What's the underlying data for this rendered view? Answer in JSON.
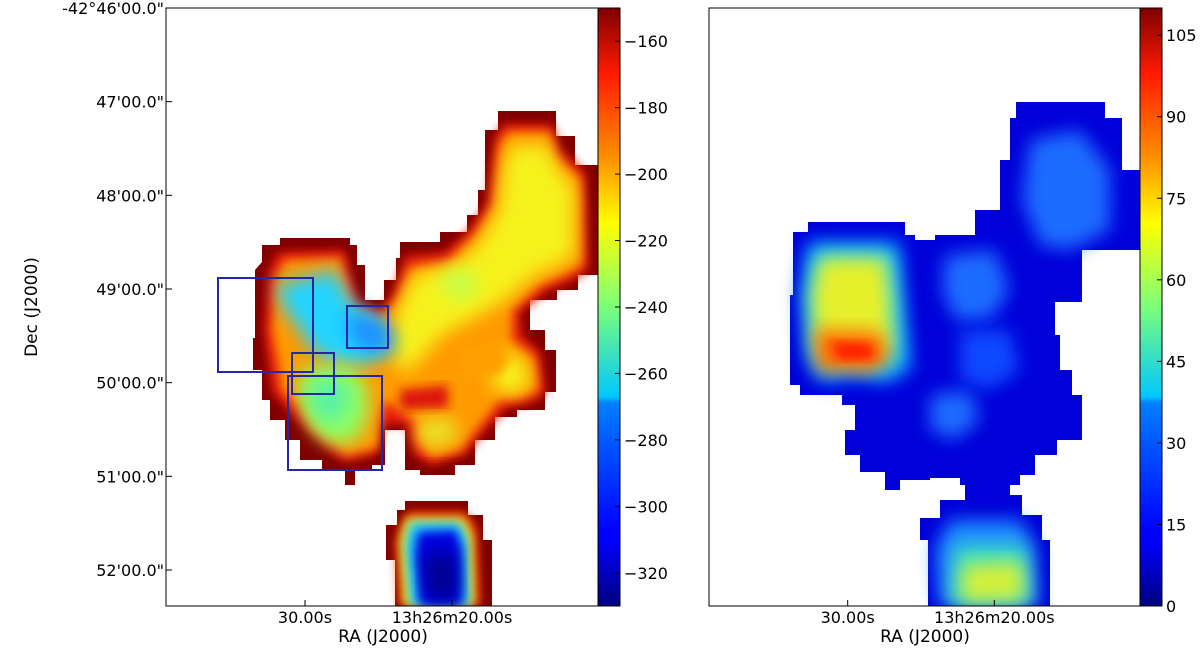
{
  "chart_data": [
    {
      "type": "heatmap",
      "panel": "left",
      "ylabel": "Dec (J2000)",
      "xlabel": "RA (J2000)",
      "x_ticks": [
        {
          "label": "30.00s",
          "ra_sec": 30.0
        },
        {
          "label": "13h26m20.00s",
          "ra_sec": 20.0
        }
      ],
      "y_ticks": [
        {
          "label": "-42°46'00.0\"",
          "dec_arcmin": -46.0
        },
        {
          "label": "47'00.0\"",
          "dec_arcmin": -47.0
        },
        {
          "label": "48'00.0\"",
          "dec_arcmin": -48.0
        },
        {
          "label": "49'00.0\"",
          "dec_arcmin": -49.0
        },
        {
          "label": "50'00.0\"",
          "dec_arcmin": -50.0
        },
        {
          "label": "51'00.0\"",
          "dec_arcmin": -51.0
        },
        {
          "label": "52'00.0\"",
          "dec_arcmin": -52.0
        }
      ],
      "colorbar": {
        "range": [
          -330,
          -150
        ],
        "ticks": [
          -160,
          -180,
          -200,
          -220,
          -240,
          -260,
          -280,
          -300,
          -320
        ],
        "tick_labels": [
          "−160",
          "−180",
          "−200",
          "−220",
          "−240",
          "−260",
          "−280",
          "−300",
          "−320"
        ],
        "colormap": "jet",
        "note": "low values blue, high values red"
      },
      "annotations": "four dark-blue rectangular boxes overlaid near the western cloud"
    },
    {
      "type": "heatmap",
      "panel": "right",
      "xlabel": "RA (J2000)",
      "x_ticks": [
        {
          "label": "30.00s",
          "ra_sec": 30.0
        },
        {
          "label": "13h26m20.00s",
          "ra_sec": 20.0
        }
      ],
      "colorbar": {
        "range": [
          0,
          110
        ],
        "ticks": [
          0,
          15,
          30,
          45,
          60,
          75,
          90,
          105
        ],
        "tick_labels": [
          "0",
          "15",
          "30",
          "45",
          "60",
          "75",
          "90",
          "105"
        ],
        "colormap": "jet"
      }
    }
  ],
  "colors": {
    "box_outline": "#2222aa",
    "frame": "#000000"
  }
}
